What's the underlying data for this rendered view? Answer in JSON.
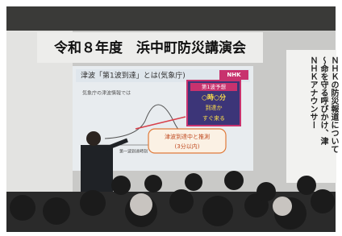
{
  "banner": {
    "title": "令和８年度　浜中町防災講演会"
  },
  "slide": {
    "title": "津波「第1波到達」とは(気象庁)",
    "logo": "NHK",
    "intro": "気象庁の津波情報では",
    "box": [
      "第1波予想",
      "○時○分",
      "到達か",
      "すぐ来る"
    ],
    "axis_label": "第一波到達時刻",
    "callout": [
      "津波到達中と推測",
      "(3分以内)"
    ]
  },
  "side_banner": {
    "lines": [
      "ＮＨＫの防災報道について",
      "～命を守る呼びかけ、津",
      "ＮＨＫアナウンサー"
    ]
  }
}
